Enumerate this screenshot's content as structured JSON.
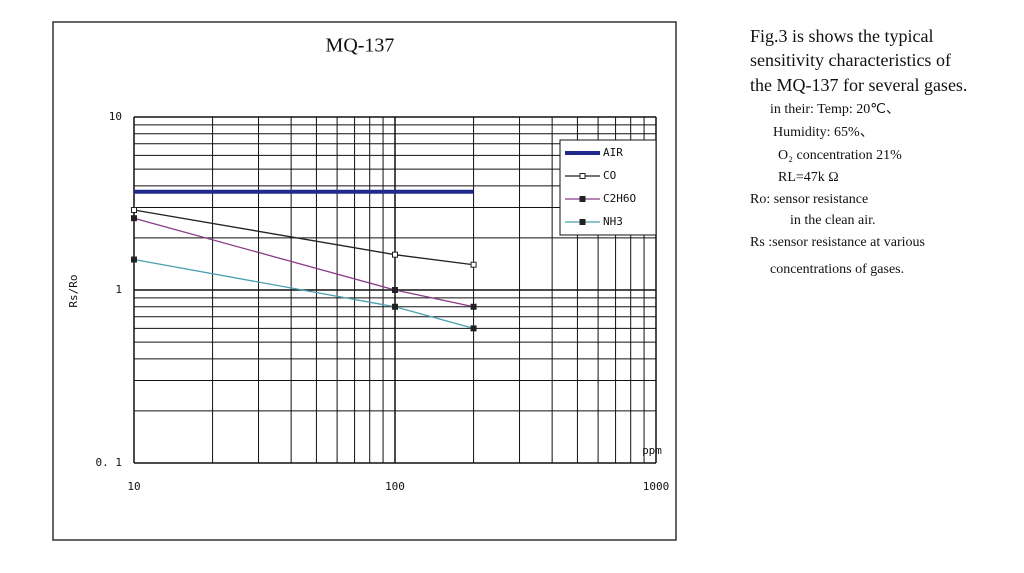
{
  "chart_data": {
    "type": "line",
    "title": "MQ-137",
    "ylabel": "Rs/Ro",
    "xlabel": "ppm",
    "log_x": true,
    "log_y": true,
    "grid": true,
    "legend": "upper right",
    "xlim": [
      10,
      1000
    ],
    "ylim": [
      0.1,
      10
    ],
    "xticks": [
      10,
      100,
      1000
    ],
    "yticks": [
      {
        "value": 0.1,
        "label": "0. 1"
      },
      1,
      10
    ],
    "x_minor_ticks": [
      20,
      30,
      40,
      50,
      60,
      70,
      80,
      90,
      200,
      300,
      400,
      500,
      600,
      700,
      800,
      900
    ],
    "y_minor_ticks": [
      0.2,
      0.3,
      0.4,
      0.5,
      0.6,
      0.7,
      0.8,
      0.9,
      2,
      3,
      4,
      5,
      6,
      7,
      8,
      9
    ],
    "series": [
      {
        "name": "AIR",
        "color": "#1f2a8a",
        "x": [
          10,
          200
        ],
        "values": [
          3.7,
          3.7
        ]
      },
      {
        "name": "CO",
        "color": "#222222",
        "x": [
          10,
          100,
          200
        ],
        "values": [
          2.9,
          1.6,
          1.4
        ]
      },
      {
        "name": "C2H6O",
        "color": "#8a3a86",
        "x": [
          10,
          100,
          200
        ],
        "values": [
          2.6,
          1.0,
          0.8
        ]
      },
      {
        "name": "NH3",
        "color": "#4aa0b0",
        "x": [
          10,
          100,
          200
        ],
        "values": [
          1.5,
          0.8,
          0.6
        ]
      }
    ]
  },
  "caption": [
    "Fig.3 is shows the typical",
    "sensitivity characteristics of",
    "the MQ-137 for several gases.",
    "in their: Temp: 20℃、",
    "Humidity: 65%、",
    "O₂ concentration 21%",
    "RL=47k Ω",
    "Ro: sensor resistance",
    "in the clean air.",
    "Rs :sensor resistance at various",
    "concentrations of gases."
  ]
}
